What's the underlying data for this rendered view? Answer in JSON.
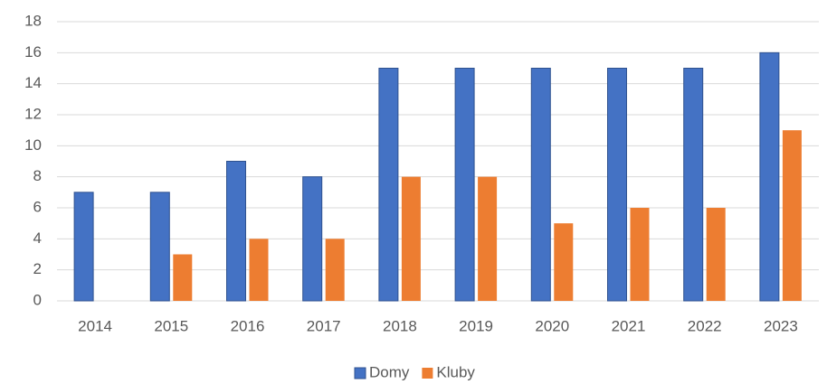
{
  "chart_data": {
    "type": "bar",
    "categories": [
      "2014",
      "2015",
      "2016",
      "2017",
      "2018",
      "2019",
      "2020",
      "2021",
      "2022",
      "2023"
    ],
    "series": [
      {
        "name": "Domy",
        "color": "#4472c4",
        "values": [
          7,
          7,
          9,
          8,
          15,
          15,
          15,
          15,
          15,
          16
        ]
      },
      {
        "name": "Kluby",
        "color": "#ed7d31",
        "values": [
          0,
          3,
          4,
          4,
          8,
          8,
          5,
          6,
          6,
          11
        ]
      }
    ],
    "ylim": [
      0,
      18
    ],
    "yticks": [
      0,
      2,
      4,
      6,
      8,
      10,
      12,
      14,
      16,
      18
    ],
    "grid": true,
    "legend": "bottom"
  }
}
